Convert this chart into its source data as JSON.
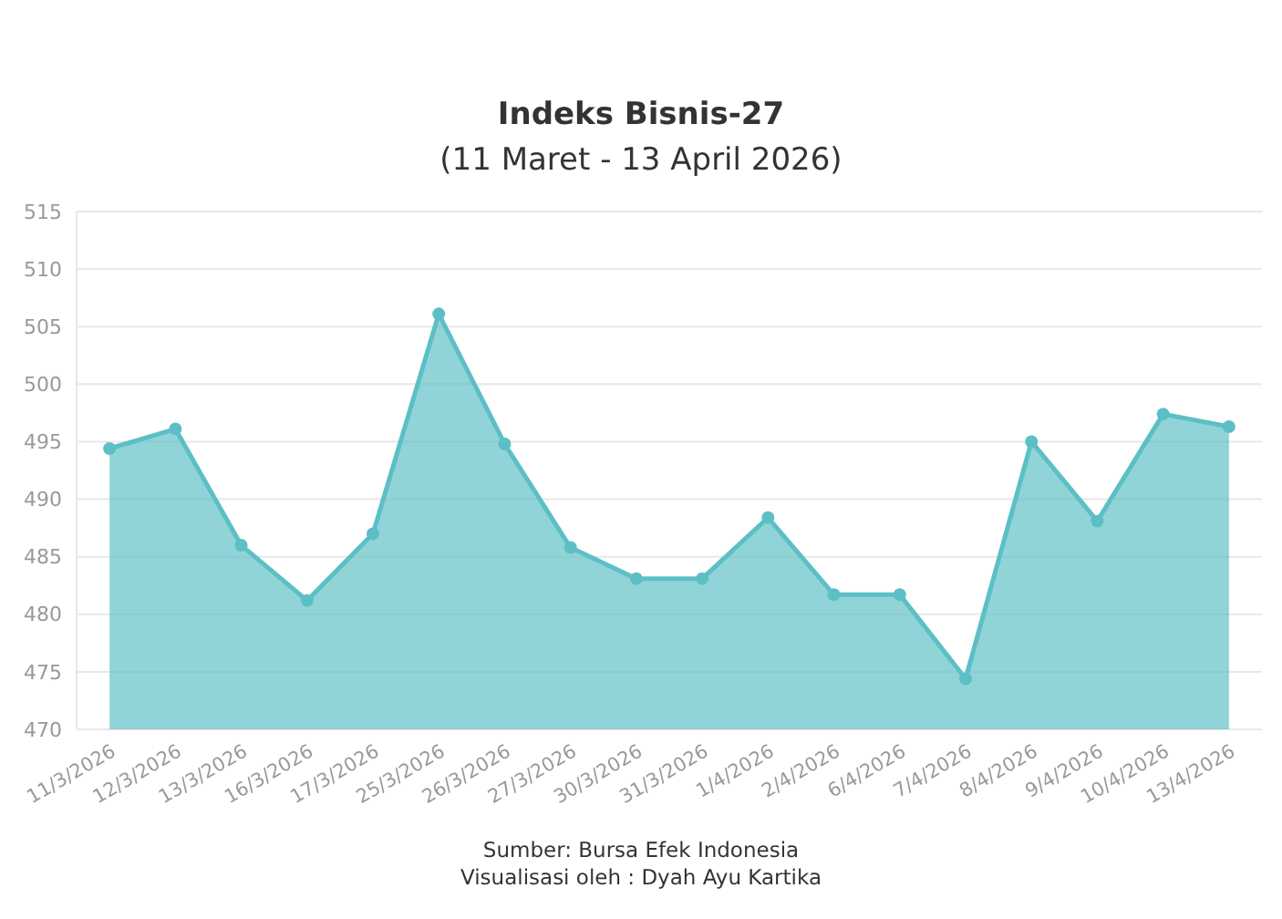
{
  "chart_data": {
    "type": "area",
    "title": "Indeks Bisnis-27",
    "subtitle": "(11 Maret - 13 April 2026)",
    "categories": [
      "11/3/2026",
      "12/3/2026",
      "13/3/2026",
      "16/3/2026",
      "17/3/2026",
      "25/3/2026",
      "26/3/2026",
      "27/3/2026",
      "30/3/2026",
      "31/3/2026",
      "1/4/2026",
      "2/4/2026",
      "6/4/2026",
      "7/4/2026",
      "8/4/2026",
      "9/4/2026",
      "10/4/2026",
      "13/4/2026"
    ],
    "series": [
      {
        "color": "#5dbfc6",
        "values": [
          494.4,
          496.1,
          486.0,
          481.2,
          487.0,
          506.1,
          494.8,
          485.8,
          483.1,
          483.1,
          488.4,
          481.7,
          481.7,
          474.4,
          495.0,
          488.1,
          497.4,
          496.3
        ]
      }
    ],
    "ylim": [
      470,
      515
    ],
    "yticks": [
      470,
      475,
      480,
      485,
      490,
      495,
      500,
      505,
      510,
      515
    ],
    "grid": "y",
    "marker": "circle",
    "line_style": "solid",
    "annotations": [
      "Sumber: Bursa Efek Indonesia",
      "Visualisasi oleh : Dyah Ayu Kartika"
    ]
  }
}
